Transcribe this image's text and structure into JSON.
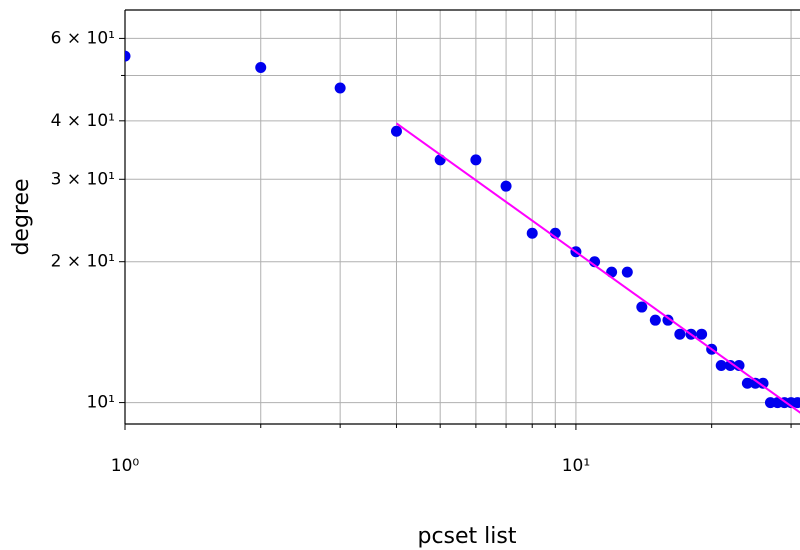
{
  "chart_data": {
    "type": "scatter",
    "x_label": "pcset list",
    "y_label": "degree",
    "log_x": true,
    "log_y": true,
    "grid": true,
    "x": [
      1,
      2,
      3,
      4,
      5,
      6,
      7,
      8,
      9,
      10,
      11,
      12,
      13,
      14,
      15,
      16,
      17,
      18,
      19,
      20,
      21,
      22,
      23,
      24,
      25,
      26,
      27,
      28,
      29,
      30,
      31
    ],
    "values": [
      55,
      52,
      47,
      38,
      33,
      33,
      29,
      23,
      23,
      21,
      20,
      19,
      19,
      16,
      15,
      15,
      14,
      14,
      14,
      13,
      12,
      12,
      12,
      11,
      11,
      11,
      10,
      10,
      10,
      10,
      10
    ],
    "color": "#0000ee",
    "fit": {
      "type": "line",
      "x": [
        4,
        32
      ],
      "values": [
        39.5,
        9.4
      ],
      "color": "#ff00ff"
    },
    "xlim": [
      1,
      31.4
    ],
    "ylim": [
      9,
      69
    ],
    "xticks": [
      {
        "value": 1,
        "label": "10⁰"
      },
      {
        "value": 10,
        "label": "10¹"
      }
    ],
    "x_minor_grid": [
      2,
      3,
      4,
      5,
      6,
      7,
      8,
      9,
      20,
      30
    ],
    "yticks": [
      {
        "value": 10,
        "label": "10¹"
      },
      {
        "value": 20,
        "label": "2 × 10¹"
      },
      {
        "value": 30,
        "label": "3 × 10¹"
      },
      {
        "value": 40,
        "label": "4 × 10¹"
      },
      {
        "value": 60,
        "label": "6 × 10¹"
      }
    ],
    "y_minor_grid": [
      50
    ]
  }
}
